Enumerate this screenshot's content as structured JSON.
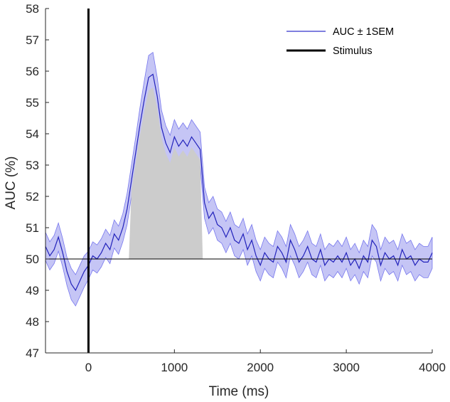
{
  "chart_data": {
    "type": "line",
    "xlabel": "Time (ms)",
    "ylabel": "AUC (%)",
    "xlim": [
      -500,
      4000
    ],
    "ylim": [
      47,
      58
    ],
    "xticks": [
      0,
      1000,
      2000,
      3000,
      4000
    ],
    "yticks": [
      47,
      48,
      49,
      50,
      51,
      52,
      53,
      54,
      55,
      56,
      57,
      58
    ],
    "grid": false,
    "legend_position": "top-right",
    "legend": [
      {
        "label": "AUC ± 1SEM",
        "color": "#3333cc",
        "style": "line"
      },
      {
        "label": "Stimulus",
        "color": "#000000",
        "style": "thick-line"
      }
    ],
    "chance_level": 50,
    "stimulus_onset": 0,
    "significant_window": [
      470,
      1330
    ],
    "series": [
      {
        "name": "AUC ± 1SEM",
        "color": "#2222bb",
        "band_color": "#c5c5f5",
        "x": [
          -500,
          -450,
          -400,
          -350,
          -300,
          -250,
          -200,
          -150,
          -100,
          -50,
          0,
          50,
          100,
          150,
          200,
          250,
          300,
          350,
          400,
          450,
          500,
          550,
          600,
          650,
          700,
          750,
          800,
          850,
          900,
          950,
          1000,
          1050,
          1100,
          1150,
          1200,
          1250,
          1300,
          1350,
          1400,
          1450,
          1500,
          1550,
          1600,
          1650,
          1700,
          1750,
          1800,
          1850,
          1900,
          1950,
          2000,
          2050,
          2100,
          2150,
          2200,
          2250,
          2300,
          2350,
          2400,
          2450,
          2500,
          2550,
          2600,
          2650,
          2700,
          2750,
          2800,
          2850,
          2900,
          2950,
          3000,
          3050,
          3100,
          3150,
          3200,
          3250,
          3300,
          3350,
          3400,
          3450,
          3500,
          3550,
          3600,
          3650,
          3700,
          3750,
          3800,
          3850,
          3900,
          3950,
          4000
        ],
        "y": [
          50.4,
          50.1,
          50.3,
          50.7,
          50.2,
          49.6,
          49.2,
          49.0,
          49.3,
          49.6,
          49.8,
          50.1,
          50.0,
          50.2,
          50.5,
          50.3,
          50.8,
          50.6,
          51.0,
          51.6,
          52.5,
          53.4,
          54.3,
          55.1,
          55.8,
          55.9,
          55.2,
          54.2,
          53.7,
          53.4,
          53.9,
          53.6,
          53.8,
          53.6,
          53.9,
          53.7,
          53.5,
          51.8,
          51.3,
          51.5,
          51.1,
          51.0,
          50.7,
          51.0,
          50.6,
          50.5,
          50.8,
          50.3,
          50.6,
          50.1,
          49.8,
          50.2,
          50.0,
          49.9,
          50.4,
          50.2,
          49.9,
          50.6,
          50.3,
          49.9,
          50.1,
          50.4,
          50.0,
          49.9,
          50.3,
          49.8,
          50.0,
          49.9,
          50.1,
          49.9,
          50.2,
          49.8,
          50.0,
          49.7,
          50.1,
          49.9,
          50.6,
          50.4,
          49.8,
          50.2,
          50.0,
          50.1,
          49.8,
          50.3,
          50.0,
          50.1,
          49.8,
          50.0,
          49.9,
          49.9,
          50.2
        ],
        "sem": [
          0.45,
          0.45,
          0.45,
          0.45,
          0.45,
          0.45,
          0.5,
          0.5,
          0.5,
          0.5,
          0.45,
          0.45,
          0.45,
          0.45,
          0.45,
          0.45,
          0.45,
          0.45,
          0.45,
          0.5,
          0.5,
          0.5,
          0.55,
          0.6,
          0.7,
          0.7,
          0.6,
          0.55,
          0.55,
          0.55,
          0.55,
          0.55,
          0.55,
          0.55,
          0.55,
          0.55,
          0.55,
          0.5,
          0.5,
          0.5,
          0.5,
          0.5,
          0.5,
          0.5,
          0.5,
          0.5,
          0.5,
          0.5,
          0.5,
          0.5,
          0.5,
          0.5,
          0.5,
          0.5,
          0.5,
          0.5,
          0.5,
          0.5,
          0.5,
          0.5,
          0.5,
          0.5,
          0.5,
          0.5,
          0.5,
          0.5,
          0.5,
          0.5,
          0.5,
          0.5,
          0.5,
          0.5,
          0.5,
          0.5,
          0.5,
          0.5,
          0.5,
          0.5,
          0.5,
          0.5,
          0.5,
          0.5,
          0.5,
          0.5,
          0.5,
          0.5,
          0.5,
          0.5,
          0.5,
          0.5,
          0.5
        ]
      }
    ]
  }
}
